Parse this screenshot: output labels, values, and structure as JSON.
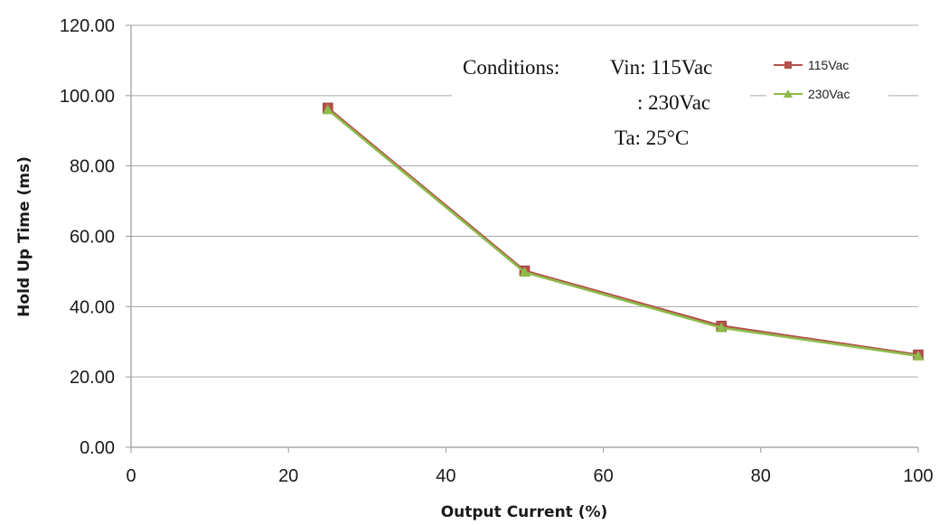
{
  "chart_data": {
    "type": "line",
    "title": "",
    "xlabel": "Output Current (%)",
    "ylabel": "Hold Up Time (ms)",
    "xlim": [
      0,
      100
    ],
    "ylim": [
      0,
      120
    ],
    "x_ticks": [
      "0",
      "20",
      "40",
      "60",
      "80",
      "100"
    ],
    "y_ticks": [
      "0.00",
      "20.00",
      "40.00",
      "60.00",
      "80.00",
      "100.00",
      "120.00"
    ],
    "grid": "horizontal",
    "legend_position": "top-right",
    "series": [
      {
        "name": "115Vac",
        "color": "#b5504b",
        "marker": "square",
        "x": [
          25,
          50,
          75,
          100
        ],
        "values": [
          96.5,
          50.2,
          34.5,
          26.3
        ]
      },
      {
        "name": "230Vac",
        "color": "#8dbb4b",
        "marker": "triangle",
        "x": [
          25,
          50,
          75,
          100
        ],
        "values": [
          96.0,
          49.8,
          34.0,
          26.0
        ]
      }
    ],
    "annotations": {
      "conditions_label": "Conditions:",
      "vin_line": "Vin: 115Vac",
      "vin_line2": ": 230Vac",
      "ta_line": "Ta: 25°C"
    }
  }
}
